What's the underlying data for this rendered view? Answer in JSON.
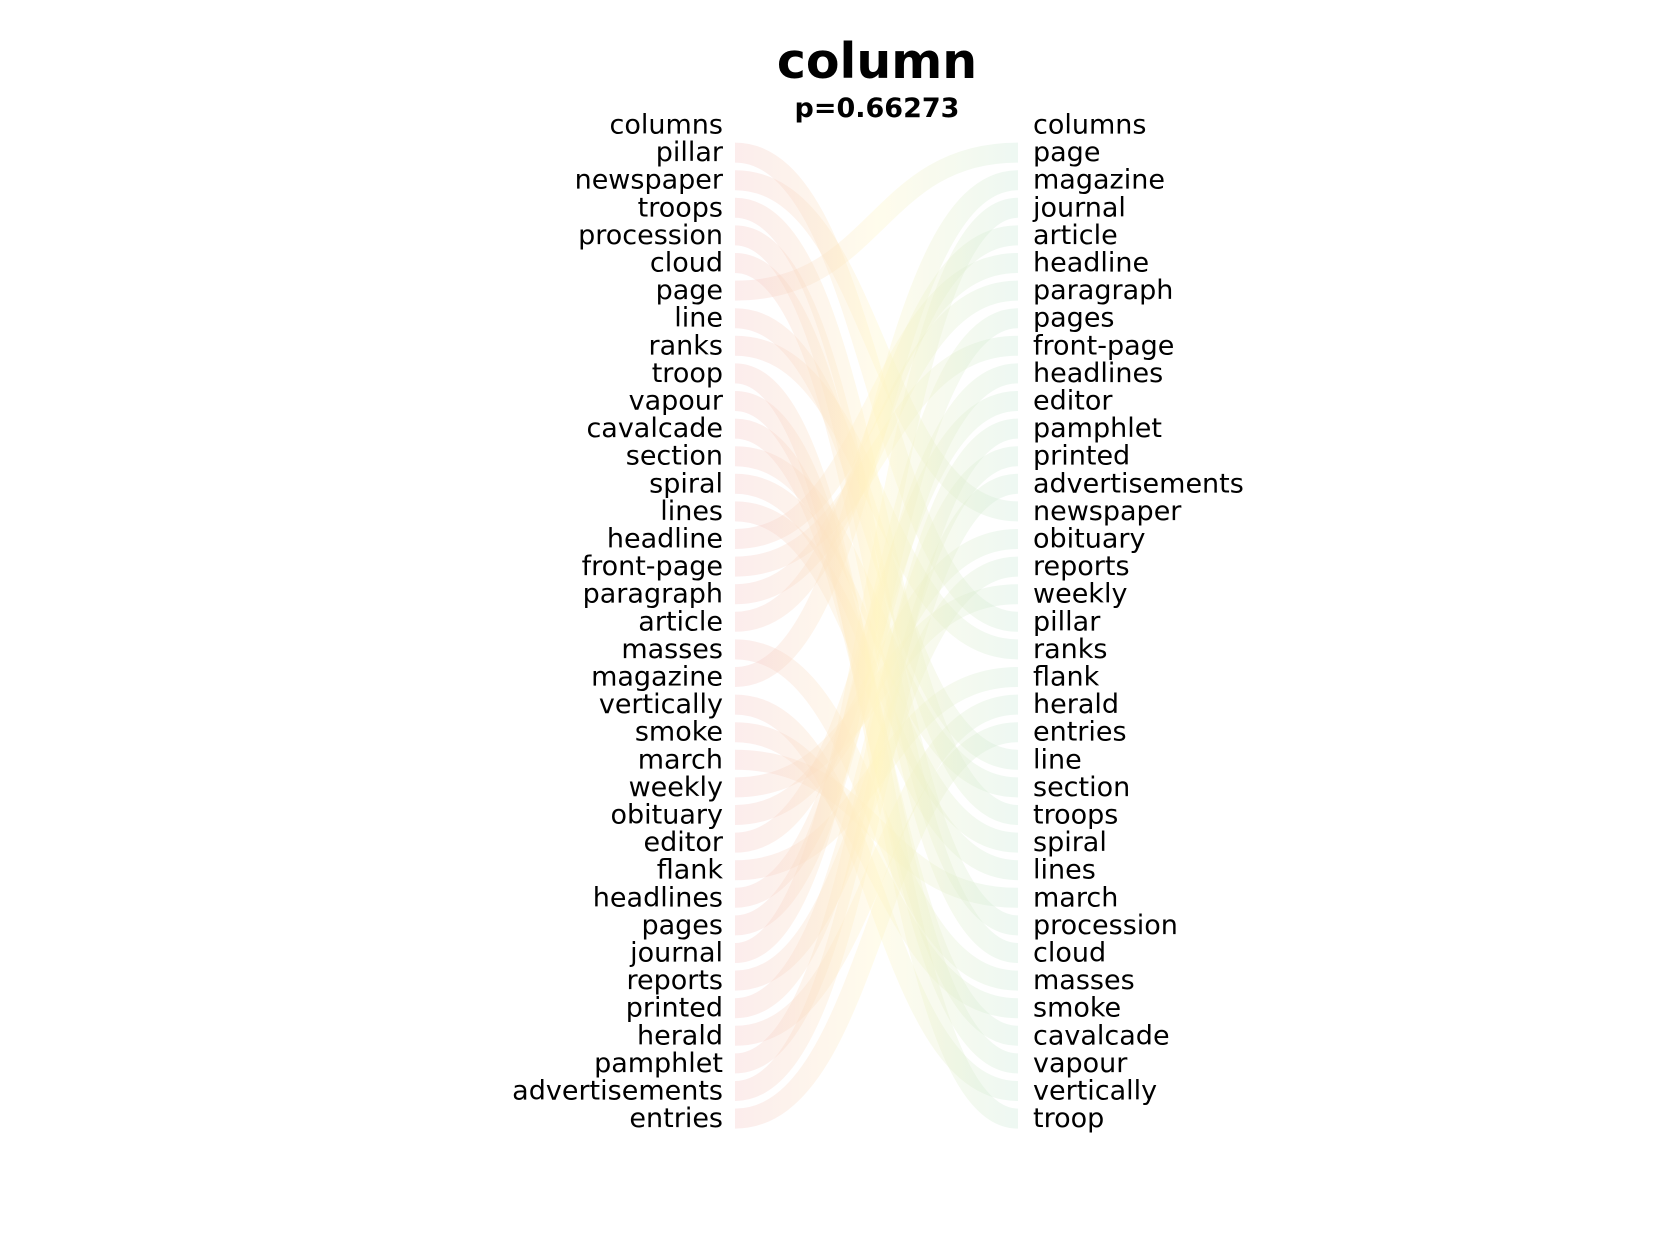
{
  "chart_data": {
    "type": "bump",
    "title": "column",
    "subtitle": "p=0.66273",
    "left_words": [
      "columns",
      "pillar",
      "newspaper",
      "troops",
      "procession",
      "cloud",
      "page",
      "line",
      "ranks",
      "troop",
      "vapour",
      "cavalcade",
      "section",
      "spiral",
      "lines",
      "headline",
      "front-page",
      "paragraph",
      "article",
      "masses",
      "magazine",
      "vertically",
      "smoke",
      "march",
      "weekly",
      "obituary",
      "editor",
      "flank",
      "headlines",
      "pages",
      "journal",
      "reports",
      "printed",
      "herald",
      "pamphlet",
      "advertisements",
      "entries"
    ],
    "right_words": [
      "columns",
      "page",
      "magazine",
      "journal",
      "article",
      "headline",
      "paragraph",
      "pages",
      "front-page",
      "headlines",
      "editor",
      "pamphlet",
      "printed",
      "advertisements",
      "newspaper",
      "obituary",
      "reports",
      "weekly",
      "pillar",
      "ranks",
      "flank",
      "herald",
      "entries",
      "line",
      "section",
      "troops",
      "spiral",
      "lines",
      "march",
      "procession",
      "cloud",
      "masses",
      "smoke",
      "cavalcade",
      "vapour",
      "vertically",
      "troop"
    ],
    "left_color": "#f4c2c2",
    "right_color": "#c6e8d4",
    "mid_color": "#fff4c0"
  }
}
